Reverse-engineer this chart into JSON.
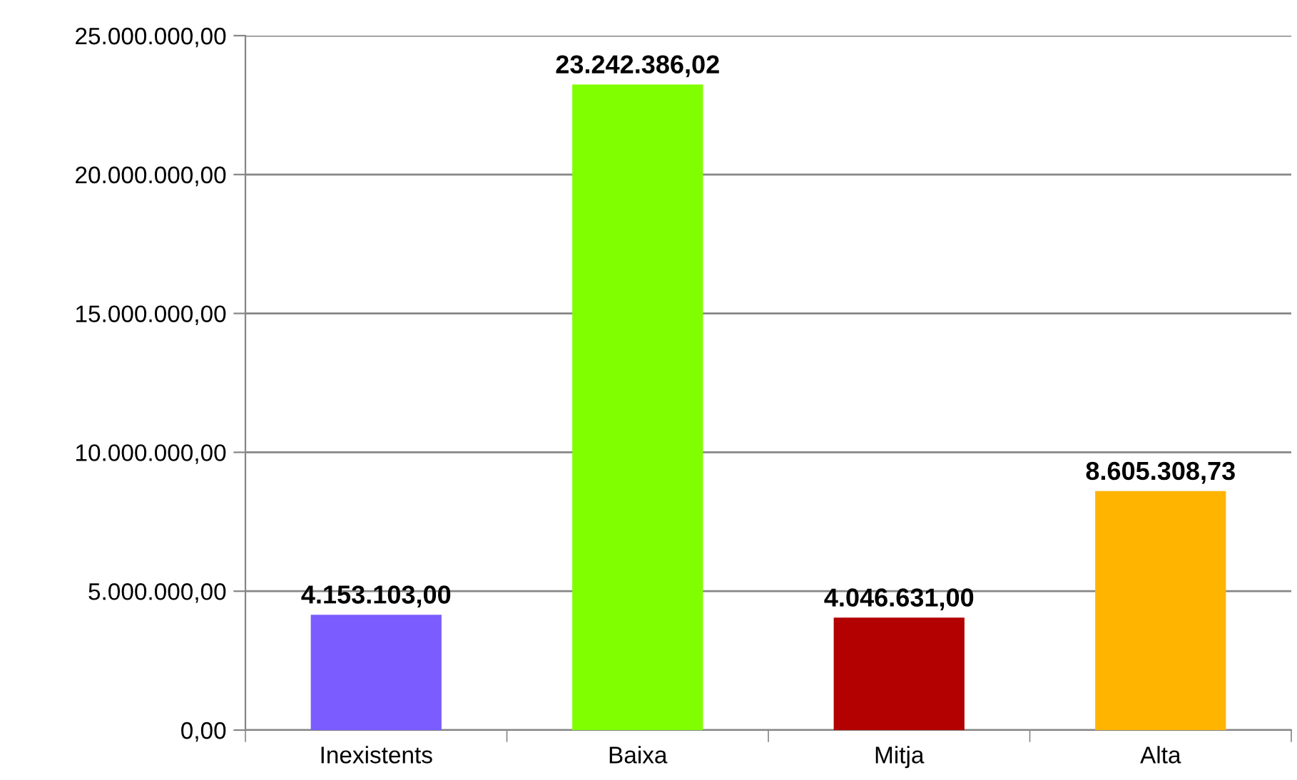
{
  "chart_data": {
    "type": "bar",
    "categories": [
      "Inexistents",
      "Baixa",
      "Mitja",
      "Alta"
    ],
    "values": [
      4153103.0,
      23242386.02,
      4046631.0,
      8605308.73
    ],
    "colors": [
      "#7b5cff",
      "#80ff00",
      "#b30000",
      "#ffb400"
    ],
    "value_labels": [
      "4.153.103,00",
      "23.242.386,02",
      "4.046.631,00",
      "8.605.308,73"
    ],
    "ylim": [
      0,
      25000000
    ],
    "yticks": [
      {
        "value": 0,
        "label": "0,00"
      },
      {
        "value": 5000000,
        "label": "5.000.000,00"
      },
      {
        "value": 10000000,
        "label": "10.000.000,00"
      },
      {
        "value": 15000000,
        "label": "15.000.000,00"
      },
      {
        "value": 20000000,
        "label": "20.000.000,00"
      },
      {
        "value": 25000000,
        "label": "25.000.000,00"
      }
    ],
    "grid": "y",
    "legend": false
  }
}
